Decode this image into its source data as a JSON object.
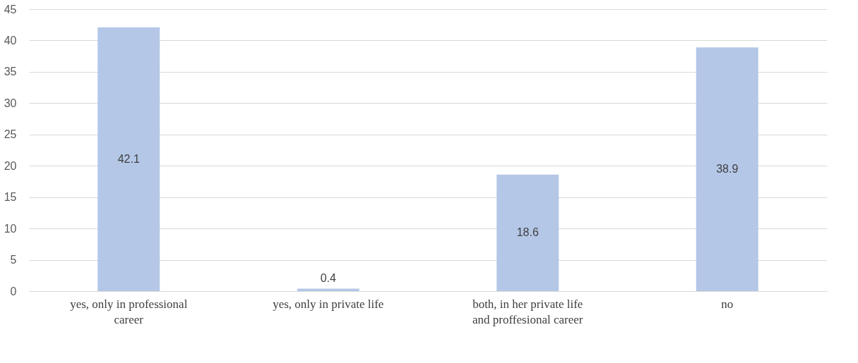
{
  "chart_data": {
    "type": "bar",
    "categories": [
      "yes, only in professional career",
      "yes, only in private life",
      "both, in her private life and proffesional career",
      "no"
    ],
    "values": [
      42.1,
      0.4,
      18.6,
      38.9
    ],
    "color": "#b4c7e7",
    "ylim": [
      0,
      45
    ],
    "yticks": [
      0,
      5,
      10,
      15,
      20,
      25,
      30,
      35,
      40,
      45
    ],
    "grid": "y",
    "data_labels": true
  }
}
